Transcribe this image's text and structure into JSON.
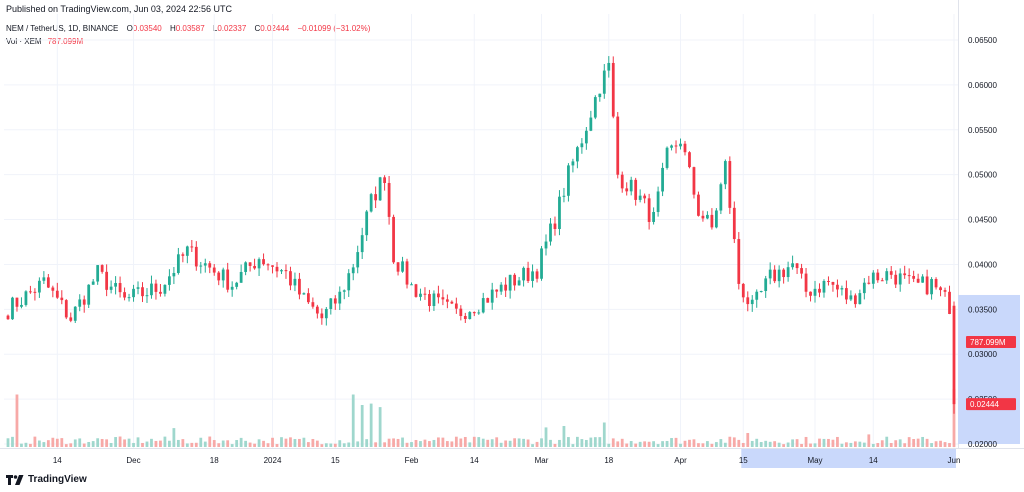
{
  "header": {
    "published": "Published on TradingView.com, Jun 03, 2024 22:56 UTC"
  },
  "legend": {
    "symbol": "NEM / TetherUS, 1D, BINANCE",
    "o_label": "O",
    "open": "0.03540",
    "h_label": "H",
    "high": "0.03587",
    "l_label": "L",
    "low": "0.02337",
    "c_label": "C",
    "close": "0.02444",
    "change": "−0.01099 (−31.02%)",
    "vol_label": "Vol · XEM",
    "vol_value": "787.099M"
  },
  "footer": {
    "brand": "TradingView"
  },
  "colors": {
    "up": "#22ab94",
    "down": "#f23645",
    "vol_up": "#9fd7cd",
    "vol_down": "#f7a9a7",
    "grid": "#f0f3fa",
    "axis_text": "#131722",
    "highlight": "#c9d8fb"
  },
  "chart_data": {
    "type": "candlestick",
    "title": "NEM / TetherUS, 1D, BINANCE",
    "xlabel": "",
    "ylabel": "",
    "y_ticks": [
      "0.06500",
      "0.06000",
      "0.05500",
      "0.05000",
      "0.04500",
      "0.04000",
      "0.03500",
      "0.03000",
      "0.02500",
      "0.02000"
    ],
    "ylim": [
      0.02,
      0.066
    ],
    "x_ticks": [
      "14",
      "Dec",
      "18",
      "2024",
      "15",
      "Feb",
      "14",
      "Mar",
      "18",
      "Apr",
      "15",
      "May",
      "14",
      "Jun"
    ],
    "x_tick_days": [
      11,
      28,
      46,
      59,
      73,
      90,
      104,
      119,
      134,
      150,
      164,
      180,
      193,
      211
    ],
    "highlight_x_range_days": [
      164,
      211
    ],
    "last_price_label": "0.02444",
    "volume_label": "787.099M",
    "grid": true,
    "waypoints": [
      [
        0,
        0.035
      ],
      [
        8,
        0.038
      ],
      [
        14,
        0.034
      ],
      [
        20,
        0.039
      ],
      [
        26,
        0.036
      ],
      [
        34,
        0.0375
      ],
      [
        40,
        0.0415
      ],
      [
        44,
        0.04
      ],
      [
        50,
        0.0378
      ],
      [
        56,
        0.0408
      ],
      [
        62,
        0.039
      ],
      [
        66,
        0.036
      ],
      [
        70,
        0.034
      ],
      [
        74,
        0.0365
      ],
      [
        77,
        0.04
      ],
      [
        81,
        0.047
      ],
      [
        84,
        0.05
      ],
      [
        86,
        0.041
      ],
      [
        90,
        0.0375
      ],
      [
        96,
        0.0355
      ],
      [
        100,
        0.0345
      ],
      [
        106,
        0.036
      ],
      [
        112,
        0.038
      ],
      [
        118,
        0.0395
      ],
      [
        122,
        0.045
      ],
      [
        125,
        0.05
      ],
      [
        128,
        0.054
      ],
      [
        132,
        0.06
      ],
      [
        134,
        0.062
      ],
      [
        136,
        0.05
      ],
      [
        140,
        0.048
      ],
      [
        144,
        0.045
      ],
      [
        147,
        0.052
      ],
      [
        150,
        0.054
      ],
      [
        154,
        0.046
      ],
      [
        157,
        0.044
      ],
      [
        160,
        0.051
      ],
      [
        163,
        0.038
      ],
      [
        166,
        0.035
      ],
      [
        170,
        0.0385
      ],
      [
        175,
        0.04
      ],
      [
        178,
        0.037
      ],
      [
        183,
        0.038
      ],
      [
        188,
        0.036
      ],
      [
        192,
        0.0385
      ],
      [
        197,
        0.039
      ],
      [
        202,
        0.0375
      ],
      [
        206,
        0.0378
      ],
      [
        210,
        0.0355
      ],
      [
        211,
        0.0244
      ]
    ],
    "volume_spikes": [
      [
        2,
        7.5
      ],
      [
        37,
        2.7
      ],
      [
        77,
        7.5
      ],
      [
        79,
        6.0
      ],
      [
        81,
        6.2
      ],
      [
        83,
        5.7
      ],
      [
        120,
        2.8
      ],
      [
        124,
        3.0
      ],
      [
        133,
        3.5
      ],
      [
        165,
        2.0
      ],
      [
        192,
        1.8
      ],
      [
        211,
        8.3
      ]
    ],
    "volume_unit": "M",
    "last_volume": 787.099
  }
}
